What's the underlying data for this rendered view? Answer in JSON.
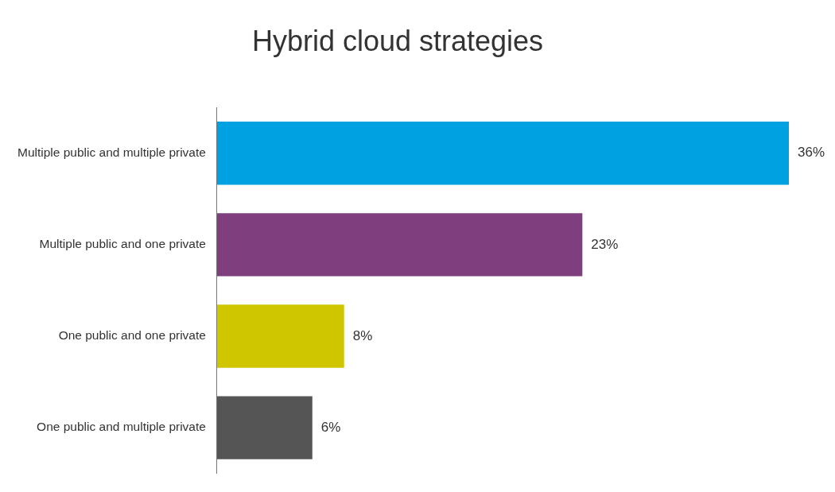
{
  "chart_data": {
    "type": "bar",
    "orientation": "horizontal",
    "title": "Hybrid cloud strategies",
    "categories": [
      "Multiple public and multiple private",
      "Multiple public and one private",
      "One public and one private",
      "One public and multiple private"
    ],
    "values": [
      36,
      23,
      8,
      6
    ],
    "colors": [
      "#00a1e0",
      "#7f3f7e",
      "#cfc600",
      "#555555"
    ],
    "value_labels": [
      "36%",
      "23%",
      "8%",
      "6%"
    ],
    "xlim": [
      0,
      36
    ],
    "tick_labels": "y",
    "legend": false
  }
}
